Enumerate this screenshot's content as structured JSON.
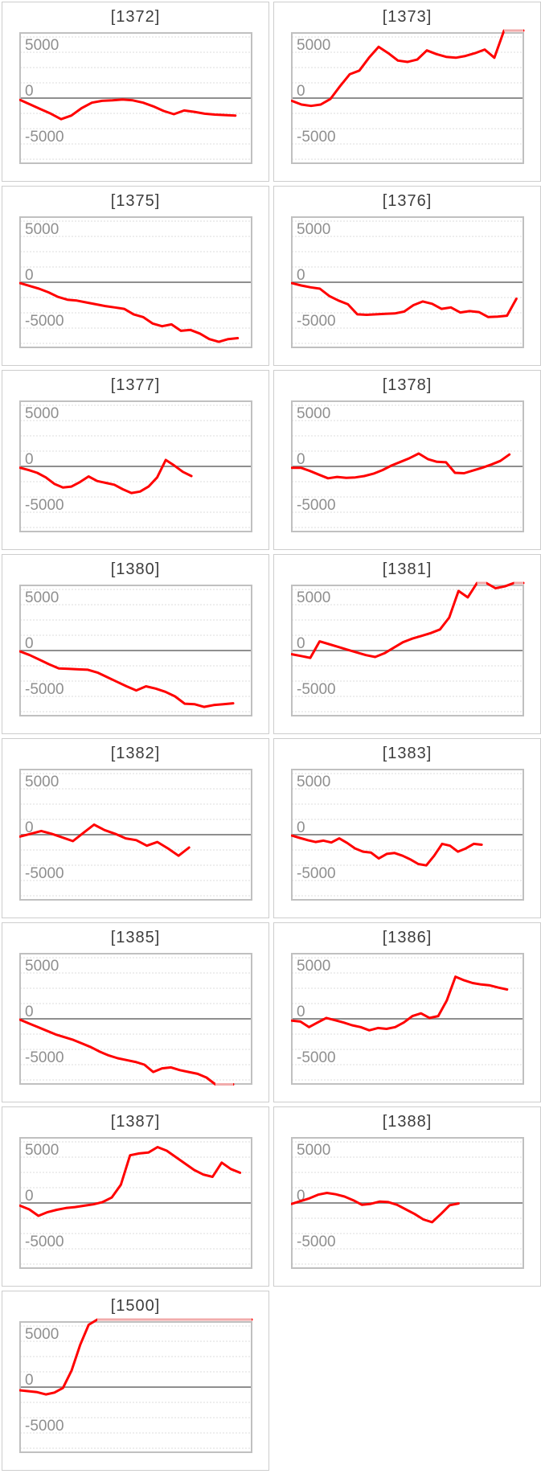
{
  "page": {
    "background": "#ffffff"
  },
  "colors": {
    "series": "#ff0000",
    "series_clipped": "#f1abab",
    "gridline": "#dcdcdc",
    "zero_axis": "#8f8f8f",
    "plot_border": "#c0c0c0",
    "cell_border": "#cdcdcd",
    "title_text": "#3d3d3d",
    "axis_label_text": "#8f8f8f"
  },
  "axis_labels": [
    "5000",
    "0",
    "-5000"
  ],
  "chart_data": [
    {
      "type": "line",
      "title": "[1372]",
      "ylabels": [
        "5000",
        "0",
        "-5000"
      ],
      "ylim": [
        -7200,
        7200
      ],
      "x_end": 0.93,
      "values": [
        -200,
        -700,
        -1200,
        -1700,
        -2300,
        -1900,
        -1100,
        -500,
        -300,
        -250,
        -150,
        -250,
        -500,
        -900,
        -1400,
        -1750,
        -1350,
        -1500,
        -1700,
        -1800,
        -1850,
        -1900
      ]
    },
    {
      "type": "line",
      "title": "[1373]",
      "ylabels": [
        "5000",
        "0",
        "-5000"
      ],
      "ylim": [
        -7200,
        7200
      ],
      "x_end": 1.0,
      "values": [
        -300,
        -700,
        -850,
        -700,
        -100,
        1300,
        2600,
        3000,
        4400,
        5600,
        4900,
        4100,
        3950,
        4200,
        5200,
        4800,
        4500,
        4400,
        4600,
        4900,
        5300,
        4400,
        7400,
        7400,
        7400
      ]
    },
    {
      "type": "line",
      "title": "[1375]",
      "ylabels": [
        "5000",
        "0",
        "-5000"
      ],
      "ylim": [
        -7200,
        7200
      ],
      "x_end": 0.94,
      "values": [
        -100,
        -400,
        -700,
        -1100,
        -1600,
        -1900,
        -2000,
        -2200,
        -2400,
        -2600,
        -2750,
        -2900,
        -3500,
        -3800,
        -4500,
        -4800,
        -4600,
        -5300,
        -5200,
        -5600,
        -6200,
        -6500,
        -6200,
        -6100
      ]
    },
    {
      "type": "line",
      "title": "[1376]",
      "ylabels": [
        "5000",
        "0",
        "-5000"
      ],
      "ylim": [
        -7200,
        7200
      ],
      "x_end": 0.97,
      "values": [
        -100,
        -350,
        -550,
        -700,
        -1500,
        -2000,
        -2400,
        -3500,
        -3550,
        -3500,
        -3450,
        -3400,
        -3200,
        -2500,
        -2100,
        -2350,
        -2900,
        -2750,
        -3300,
        -3150,
        -3250,
        -3800,
        -3750,
        -3650,
        -1800
      ]
    },
    {
      "type": "line",
      "title": "[1377]",
      "ylabels": [
        "5000",
        "0",
        "-5000"
      ],
      "ylim": [
        -7200,
        7200
      ],
      "x_end": 0.74,
      "values": [
        -150,
        -400,
        -700,
        -1200,
        -1900,
        -2300,
        -2200,
        -1700,
        -1100,
        -1600,
        -1800,
        -2000,
        -2500,
        -2900,
        -2750,
        -2200,
        -1200,
        700,
        100,
        -600,
        -1050
      ]
    },
    {
      "type": "line",
      "title": "[1378]",
      "ylabels": [
        "5000",
        "0",
        "-5000"
      ],
      "ylim": [
        -7200,
        7200
      ],
      "x_end": 0.94,
      "values": [
        -150,
        -150,
        -500,
        -900,
        -1300,
        -1150,
        -1250,
        -1200,
        -1050,
        -800,
        -400,
        100,
        500,
        900,
        1400,
        800,
        500,
        450,
        -700,
        -750,
        -450,
        -150,
        200,
        600,
        1300
      ]
    },
    {
      "type": "line",
      "title": "[1380]",
      "ylabels": [
        "5000",
        "0",
        "-5000"
      ],
      "ylim": [
        -7200,
        7200
      ],
      "x_end": 0.92,
      "values": [
        -100,
        -500,
        -1000,
        -1500,
        -1950,
        -2000,
        -2050,
        -2100,
        -2400,
        -2900,
        -3400,
        -3900,
        -4350,
        -3900,
        -4150,
        -4500,
        -5000,
        -5800,
        -5850,
        -6150,
        -5950,
        -5850,
        -5750
      ]
    },
    {
      "type": "line",
      "title": "[1381]",
      "ylabels": [
        "5000",
        "0",
        "-5000"
      ],
      "ylim": [
        -7200,
        7200
      ],
      "x_end": 1.0,
      "values": [
        -400,
        -600,
        -800,
        1000,
        700,
        400,
        100,
        -200,
        -500,
        -700,
        -300,
        300,
        900,
        1300,
        1600,
        1900,
        2300,
        3600,
        6500,
        5800,
        7400,
        7400,
        6800,
        7000,
        7400,
        7400
      ]
    },
    {
      "type": "line",
      "title": "[1382]",
      "ylabels": [
        "5000",
        "0",
        "-5000"
      ],
      "ylim": [
        -7200,
        7200
      ],
      "x_end": 0.73,
      "values": [
        -200,
        100,
        400,
        100,
        -300,
        -700,
        200,
        1100,
        500,
        100,
        -400,
        -600,
        -1200,
        -800,
        -1500,
        -2300,
        -1400
      ]
    },
    {
      "type": "line",
      "title": "[1383]",
      "ylabels": [
        "5000",
        "0",
        "-5000"
      ],
      "ylim": [
        -7200,
        7200
      ],
      "x_end": 0.82,
      "values": [
        -100,
        -350,
        -600,
        -800,
        -650,
        -850,
        -400,
        -900,
        -1500,
        -1850,
        -1950,
        -2600,
        -2100,
        -2000,
        -2300,
        -2700,
        -3200,
        -3350,
        -2300,
        -1000,
        -1200,
        -1850,
        -1500,
        -1000,
        -1100
      ]
    },
    {
      "type": "line",
      "title": "[1385]",
      "ylabels": [
        "5000",
        "0",
        "-5000"
      ],
      "ylim": [
        -7200,
        7200
      ],
      "x_end": 0.92,
      "values": [
        -100,
        -500,
        -900,
        -1300,
        -1700,
        -2000,
        -2300,
        -2700,
        -3100,
        -3600,
        -4000,
        -4300,
        -4500,
        -4700,
        -5000,
        -5800,
        -5400,
        -5300,
        -5600,
        -5800,
        -6000,
        -6400,
        -7400,
        -7400,
        -7400
      ]
    },
    {
      "type": "line",
      "title": "[1386]",
      "ylabels": [
        "5000",
        "0",
        "-5000"
      ],
      "ylim": [
        -7200,
        7200
      ],
      "x_end": 0.93,
      "values": [
        -200,
        -300,
        -900,
        -400,
        100,
        -150,
        -400,
        -700,
        -900,
        -1250,
        -1000,
        -1100,
        -900,
        -400,
        300,
        600,
        100,
        300,
        2000,
        4600,
        4200,
        3900,
        3750,
        3650,
        3400,
        3200
      ]
    },
    {
      "type": "line",
      "title": "[1387]",
      "ylabels": [
        "5000",
        "0",
        "-5000"
      ],
      "ylim": [
        -7200,
        7200
      ],
      "x_end": 0.95,
      "values": [
        -300,
        -700,
        -1400,
        -1000,
        -750,
        -550,
        -450,
        -300,
        -150,
        100,
        600,
        2000,
        5200,
        5400,
        5500,
        6100,
        5700,
        5000,
        4300,
        3600,
        3100,
        2850,
        4400,
        3700,
        3300
      ]
    },
    {
      "type": "line",
      "title": "[1388]",
      "ylabels": [
        "5000",
        "0",
        "-5000"
      ],
      "ylim": [
        -7200,
        7200
      ],
      "x_end": 0.72,
      "values": [
        -100,
        200,
        500,
        900,
        1100,
        950,
        700,
        300,
        -200,
        -100,
        150,
        100,
        -200,
        -700,
        -1200,
        -1800,
        -2100,
        -1200,
        -250,
        -50
      ]
    },
    {
      "type": "line",
      "title": "[1500]",
      "ylabels": [
        "5000",
        "0",
        "-5000"
      ],
      "ylim": [
        -7200,
        7200
      ],
      "x_end": 1.0,
      "values": [
        -350,
        -450,
        -550,
        -800,
        -600,
        -100,
        1800,
        4600,
        6800,
        7400,
        7400,
        7400,
        7400,
        7400,
        7400,
        7400,
        7400,
        7400,
        7400,
        7400,
        7400,
        7400,
        7400,
        7400,
        7400,
        7400,
        7400,
        7400
      ]
    }
  ]
}
